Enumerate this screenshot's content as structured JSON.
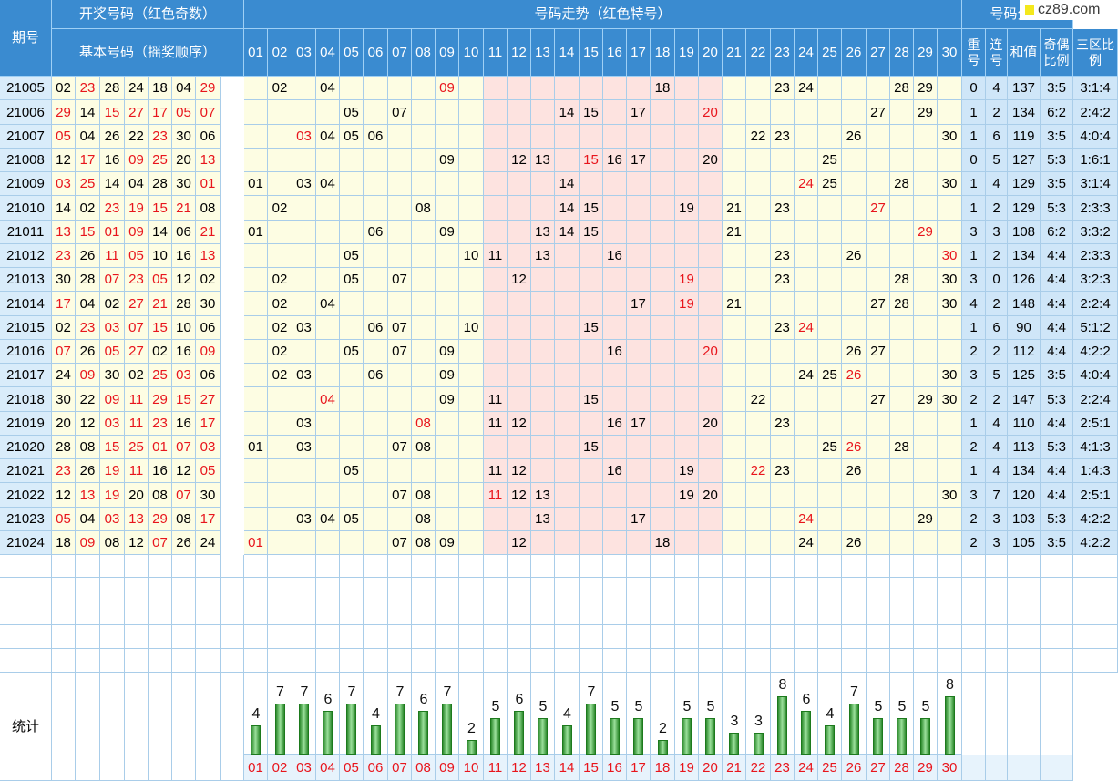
{
  "header": {
    "period": "期号",
    "draw_group": "开奖号码（红色奇数）",
    "basic": "基本号码（摇奖顺序）",
    "special": "特号",
    "trend": "号码走势（红色特号）",
    "analysis": "号码分析",
    "repeat": "重号",
    "consec": "连号",
    "sum": "和值",
    "oddeven": "奇偶比例",
    "zones": "三区比例"
  },
  "logo": {
    "text": "cz89.com"
  },
  "columns": [
    "01",
    "02",
    "03",
    "04",
    "05",
    "06",
    "07",
    "08",
    "09",
    "10",
    "11",
    "12",
    "13",
    "14",
    "15",
    "16",
    "17",
    "18",
    "19",
    "20",
    "21",
    "22",
    "23",
    "24",
    "25",
    "26",
    "27",
    "28",
    "29",
    "30"
  ],
  "colors": {
    "header": "#3a8bd0",
    "odd_red": "#e8151c",
    "pink_zone": "#fde3e0",
    "yellow_zone": "#fdfde3",
    "bar_green": "#2e8b2e"
  },
  "rows": [
    {
      "issue": "21005",
      "basic": [
        "02",
        "23",
        "28",
        "24",
        "18",
        "04",
        "29"
      ],
      "special": "09",
      "trend": {
        "02": "02",
        "04": "04",
        "09": "09",
        "18": "18",
        "23": "23",
        "24": "24",
        "28": "28",
        "29": "29"
      },
      "repeat": "0",
      "consec": "4",
      "sum": "137",
      "oddeven": "3:5",
      "zones": "3:1:4"
    },
    {
      "issue": "21006",
      "basic": [
        "29",
        "14",
        "15",
        "27",
        "17",
        "05",
        "07"
      ],
      "special": "20",
      "trend": {
        "05": "05",
        "07": "07",
        "14": "14",
        "15": "15",
        "17": "17",
        "20": "20",
        "27": "27",
        "29": "29"
      },
      "repeat": "1",
      "consec": "2",
      "sum": "134",
      "oddeven": "6:2",
      "zones": "2:4:2"
    },
    {
      "issue": "21007",
      "basic": [
        "05",
        "04",
        "26",
        "22",
        "23",
        "30",
        "06"
      ],
      "special": "03",
      "trend": {
        "03": "03",
        "04": "04",
        "05": "05",
        "06": "06",
        "22": "22",
        "23": "23",
        "26": "26",
        "30": "30"
      },
      "repeat": "1",
      "consec": "6",
      "sum": "119",
      "oddeven": "3:5",
      "zones": "4:0:4"
    },
    {
      "issue": "21008",
      "basic": [
        "12",
        "17",
        "16",
        "09",
        "25",
        "20",
        "13"
      ],
      "special": "15",
      "trend": {
        "09": "09",
        "12": "12",
        "13": "13",
        "15": "15",
        "16": "16",
        "17": "17",
        "20": "20",
        "25": "25"
      },
      "repeat": "0",
      "consec": "5",
      "sum": "127",
      "oddeven": "5:3",
      "zones": "1:6:1"
    },
    {
      "issue": "21009",
      "basic": [
        "03",
        "25",
        "14",
        "04",
        "28",
        "30",
        "01"
      ],
      "special": "24",
      "trend": {
        "01": "01",
        "03": "03",
        "04": "04",
        "14": "14",
        "24": "24",
        "25": "25",
        "28": "28",
        "30": "30"
      },
      "repeat": "1",
      "consec": "4",
      "sum": "129",
      "oddeven": "3:5",
      "zones": "3:1:4"
    },
    {
      "issue": "21010",
      "basic": [
        "14",
        "02",
        "23",
        "19",
        "15",
        "21",
        "08"
      ],
      "special": "27",
      "trend": {
        "02": "02",
        "08": "08",
        "14": "14",
        "15": "15",
        "19": "19",
        "21": "21",
        "23": "23",
        "27": "27"
      },
      "repeat": "1",
      "consec": "2",
      "sum": "129",
      "oddeven": "5:3",
      "zones": "2:3:3"
    },
    {
      "issue": "21011",
      "basic": [
        "13",
        "15",
        "01",
        "09",
        "14",
        "06",
        "21"
      ],
      "special": "29",
      "trend": {
        "01": "01",
        "06": "06",
        "09": "09",
        "13": "13",
        "14": "14",
        "15": "15",
        "21": "21",
        "29": "29"
      },
      "repeat": "3",
      "consec": "3",
      "sum": "108",
      "oddeven": "6:2",
      "zones": "3:3:2"
    },
    {
      "issue": "21012",
      "basic": [
        "23",
        "26",
        "11",
        "05",
        "10",
        "16",
        "13"
      ],
      "special": "30",
      "trend": {
        "05": "05",
        "10": "10",
        "11": "11",
        "13": "13",
        "16": "16",
        "23": "23",
        "26": "26",
        "30": "30"
      },
      "repeat": "1",
      "consec": "2",
      "sum": "134",
      "oddeven": "4:4",
      "zones": "2:3:3"
    },
    {
      "issue": "21013",
      "basic": [
        "30",
        "28",
        "07",
        "23",
        "05",
        "12",
        "02"
      ],
      "special": "19",
      "trend": {
        "02": "02",
        "05": "05",
        "07": "07",
        "12": "12",
        "19": "19",
        "23": "23",
        "28": "28",
        "30": "30"
      },
      "repeat": "3",
      "consec": "0",
      "sum": "126",
      "oddeven": "4:4",
      "zones": "3:2:3"
    },
    {
      "issue": "21014",
      "basic": [
        "17",
        "04",
        "02",
        "27",
        "21",
        "28",
        "30"
      ],
      "special": "19",
      "trend": {
        "02": "02",
        "04": "04",
        "17": "17",
        "19": "19",
        "21": "21",
        "27": "27",
        "28": "28",
        "30": "30"
      },
      "repeat": "4",
      "consec": "2",
      "sum": "148",
      "oddeven": "4:4",
      "zones": "2:2:4"
    },
    {
      "issue": "21015",
      "basic": [
        "02",
        "23",
        "03",
        "07",
        "15",
        "10",
        "06"
      ],
      "special": "24",
      "trend": {
        "02": "02",
        "03": "03",
        "06": "06",
        "07": "07",
        "10": "10",
        "15": "15",
        "23": "23",
        "24": "24"
      },
      "repeat": "1",
      "consec": "6",
      "sum": "90",
      "oddeven": "4:4",
      "zones": "5:1:2"
    },
    {
      "issue": "21016",
      "basic": [
        "07",
        "26",
        "05",
        "27",
        "02",
        "16",
        "09"
      ],
      "special": "20",
      "trend": {
        "02": "02",
        "05": "05",
        "07": "07",
        "09": "09",
        "16": "16",
        "20": "20",
        "26": "26",
        "27": "27"
      },
      "repeat": "2",
      "consec": "2",
      "sum": "112",
      "oddeven": "4:4",
      "zones": "4:2:2"
    },
    {
      "issue": "21017",
      "basic": [
        "24",
        "09",
        "30",
        "02",
        "25",
        "03",
        "06"
      ],
      "special": "26",
      "trend": {
        "02": "02",
        "03": "03",
        "06": "06",
        "09": "09",
        "24": "24",
        "25": "25",
        "26": "26",
        "30": "30"
      },
      "repeat": "3",
      "consec": "5",
      "sum": "125",
      "oddeven": "3:5",
      "zones": "4:0:4"
    },
    {
      "issue": "21018",
      "basic": [
        "30",
        "22",
        "09",
        "11",
        "29",
        "15",
        "27"
      ],
      "special": "04",
      "trend": {
        "04": "04",
        "09": "09",
        "11": "11",
        "15": "15",
        "22": "22",
        "27": "27",
        "29": "29",
        "30": "30"
      },
      "repeat": "2",
      "consec": "2",
      "sum": "147",
      "oddeven": "5:3",
      "zones": "2:2:4"
    },
    {
      "issue": "21019",
      "basic": [
        "20",
        "12",
        "03",
        "11",
        "23",
        "16",
        "17"
      ],
      "special": "08",
      "trend": {
        "03": "03",
        "08": "08",
        "11": "11",
        "12": "12",
        "16": "16",
        "17": "17",
        "20": "20",
        "23": "23"
      },
      "repeat": "1",
      "consec": "4",
      "sum": "110",
      "oddeven": "4:4",
      "zones": "2:5:1"
    },
    {
      "issue": "21020",
      "basic": [
        "28",
        "08",
        "15",
        "25",
        "01",
        "07",
        "03"
      ],
      "special": "26",
      "trend": {
        "01": "01",
        "03": "03",
        "07": "07",
        "08": "08",
        "15": "15",
        "25": "25",
        "26": "26",
        "28": "28"
      },
      "repeat": "2",
      "consec": "4",
      "sum": "113",
      "oddeven": "5:3",
      "zones": "4:1:3"
    },
    {
      "issue": "21021",
      "basic": [
        "23",
        "26",
        "19",
        "11",
        "16",
        "12",
        "05"
      ],
      "special": "22",
      "trend": {
        "05": "05",
        "11": "11",
        "12": "12",
        "16": "16",
        "19": "19",
        "22": "22",
        "23": "23",
        "26": "26"
      },
      "repeat": "1",
      "consec": "4",
      "sum": "134",
      "oddeven": "4:4",
      "zones": "1:4:3"
    },
    {
      "issue": "21022",
      "basic": [
        "12",
        "13",
        "19",
        "20",
        "08",
        "07",
        "30"
      ],
      "special": "11",
      "trend": {
        "07": "07",
        "08": "08",
        "11": "11",
        "12": "12",
        "13": "13",
        "19": "19",
        "20": "20",
        "30": "30"
      },
      "repeat": "3",
      "consec": "7",
      "sum": "120",
      "oddeven": "4:4",
      "zones": "2:5:1"
    },
    {
      "issue": "21023",
      "basic": [
        "05",
        "04",
        "03",
        "13",
        "29",
        "08",
        "17"
      ],
      "special": "24",
      "trend": {
        "03": "03",
        "04": "04",
        "05": "05",
        "08": "08",
        "13": "13",
        "17": "17",
        "24": "24",
        "29": "29"
      },
      "repeat": "2",
      "consec": "3",
      "sum": "103",
      "oddeven": "5:3",
      "zones": "4:2:2"
    },
    {
      "issue": "21024",
      "basic": [
        "18",
        "09",
        "08",
        "12",
        "07",
        "26",
        "24"
      ],
      "special": "01",
      "trend": {
        "01": "01",
        "07": "07",
        "08": "08",
        "09": "09",
        "12": "12",
        "18": "18",
        "24": "24",
        "26": "26"
      },
      "repeat": "2",
      "consec": "3",
      "sum": "105",
      "oddeven": "3:5",
      "zones": "4:2:2"
    }
  ],
  "stats": {
    "label": "统计"
  },
  "chart_data": {
    "type": "bar",
    "categories": [
      "01",
      "02",
      "03",
      "04",
      "05",
      "06",
      "07",
      "08",
      "09",
      "10",
      "11",
      "12",
      "13",
      "14",
      "15",
      "16",
      "17",
      "18",
      "19",
      "20",
      "21",
      "22",
      "23",
      "24",
      "25",
      "26",
      "27",
      "28",
      "29",
      "30"
    ],
    "values": [
      4,
      7,
      7,
      6,
      7,
      4,
      7,
      6,
      7,
      2,
      5,
      6,
      5,
      4,
      7,
      5,
      5,
      2,
      5,
      5,
      3,
      3,
      8,
      6,
      4,
      7,
      5,
      5,
      5,
      8
    ],
    "title": "",
    "xlabel": "",
    "ylabel": "",
    "ylim": [
      0,
      8
    ],
    "grid": false,
    "legend": "none"
  }
}
